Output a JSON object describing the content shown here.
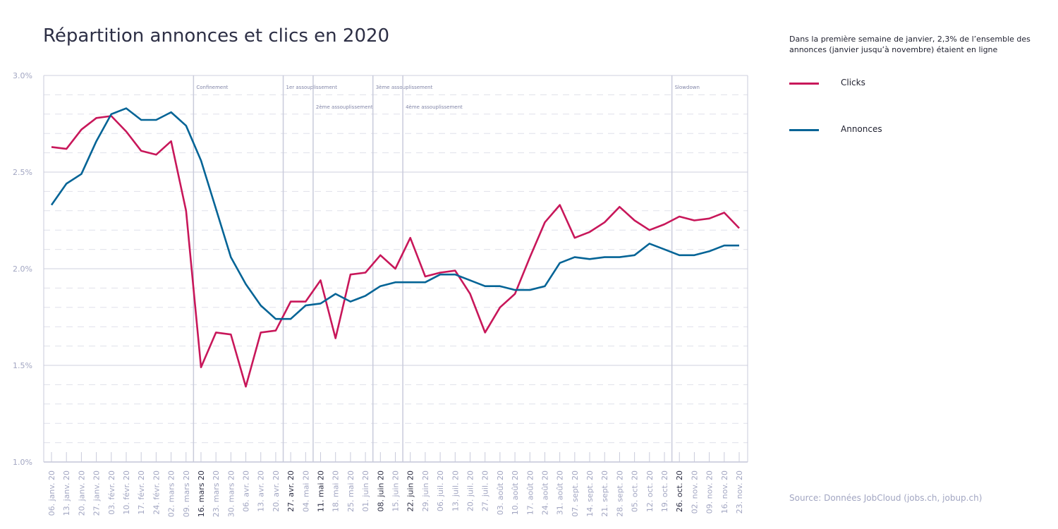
{
  "title": "Répartition annonces et clics en 2020",
  "note": "Dans la première semaine de janvier, 2,3% de l’ensemble des annonces (janvier jusqu’à novembre) étaient en ligne",
  "source": "Source: Données JobCloud (jobs.ch, jobup.ch)",
  "colors": {
    "clicks": "#c8175a",
    "annonces": "#046496",
    "grid": "#dfe0ea",
    "axis": "#c9cbdb"
  },
  "chart_data": {
    "type": "line",
    "title": "Répartition annonces et clics en 2020",
    "categories": [
      "06. janv. 20",
      "13. janv. 20",
      "20. janv. 20",
      "27. janv. 20",
      "03. févr. 20",
      "10. févr. 20",
      "17. févr. 20",
      "24. févr. 20",
      "02. mars 20",
      "09. mars 20",
      "16. mars 20",
      "23. mars 20",
      "30. mars 20",
      "06. avr. 20",
      "13. avr. 20",
      "20. avr. 20",
      "27. avr. 20",
      "04. mai 20",
      "11. mai 20",
      "18. mai 20",
      "25. mai 20",
      "01. juin 20",
      "08. juin 20",
      "15. juin 20",
      "22. juin 20",
      "29. juin 20",
      "06. juil. 20",
      "13. juil. 20",
      "20. juil. 20",
      "27. juil. 20",
      "03. août 20",
      "10. août 20",
      "17. août 20",
      "24. août 20",
      "31. août 20",
      "07. sept. 20",
      "14. sept. 20",
      "21. sept. 20",
      "28. sept. 20",
      "05. oct. 20",
      "12. oct. 20",
      "19. oct. 20",
      "26. oct. 20",
      "02. nov. 20",
      "09. nov. 20",
      "16. nov. 20",
      "23. nov. 20"
    ],
    "bold_categories": [
      "16. mars 20",
      "27. avr. 20",
      "11. mai 20",
      "08. juin 20",
      "22. juin 20",
      "26. oct. 20"
    ],
    "series": [
      {
        "name": "Clicks",
        "key": "clicks",
        "values": [
          2.63,
          2.62,
          2.72,
          2.78,
          2.79,
          2.71,
          2.61,
          2.59,
          2.66,
          2.3,
          1.49,
          1.67,
          1.66,
          1.39,
          1.67,
          1.68,
          1.83,
          1.83,
          1.94,
          1.64,
          1.97,
          1.98,
          2.07,
          2.0,
          2.16,
          1.96,
          1.98,
          1.99,
          1.87,
          1.67,
          1.8,
          1.87,
          2.06,
          2.24,
          2.33,
          2.16,
          2.19,
          2.24,
          2.32,
          2.25,
          2.2,
          2.23,
          2.27,
          2.25,
          2.26,
          2.29,
          2.21
        ]
      },
      {
        "name": "Annonces",
        "key": "annonces",
        "values": [
          2.33,
          2.44,
          2.49,
          2.66,
          2.8,
          2.83,
          2.77,
          2.77,
          2.81,
          2.74,
          2.56,
          2.31,
          2.06,
          1.92,
          1.81,
          1.74,
          1.74,
          1.81,
          1.82,
          1.87,
          1.83,
          1.86,
          1.91,
          1.93,
          1.93,
          1.93,
          1.97,
          1.97,
          1.94,
          1.91,
          1.91,
          1.89,
          1.89,
          1.91,
          2.03,
          2.06,
          2.05,
          2.06,
          2.06,
          2.07,
          2.13,
          2.1,
          2.07,
          2.07,
          2.09,
          2.12,
          2.12
        ]
      }
    ],
    "ylim": [
      1.0,
      3.0
    ],
    "y_ticks": [
      1.0,
      1.5,
      2.0,
      2.5,
      3.0
    ],
    "y_tick_labels": [
      "1.0%",
      "1.5%",
      "2.0%",
      "2.5%",
      "3.0%"
    ],
    "grid": true,
    "events": [
      {
        "label": "Confinement",
        "at": 9.5,
        "row": 1
      },
      {
        "label": "1er assouplissement",
        "at": 15.5,
        "row": 1
      },
      {
        "label": "2ème assouplissement",
        "at": 17.5,
        "row": 2
      },
      {
        "label": "3ème assouplissement",
        "at": 21.5,
        "row": 1
      },
      {
        "label": "4ème assouplissement",
        "at": 23.5,
        "row": 2
      },
      {
        "label": "Slowdown",
        "at": 41.5,
        "row": 1
      }
    ],
    "legend_position": "right"
  },
  "legend": [
    {
      "label": "Clicks",
      "color": "#c8175a"
    },
    {
      "label": "Annonces",
      "color": "#046496"
    }
  ]
}
